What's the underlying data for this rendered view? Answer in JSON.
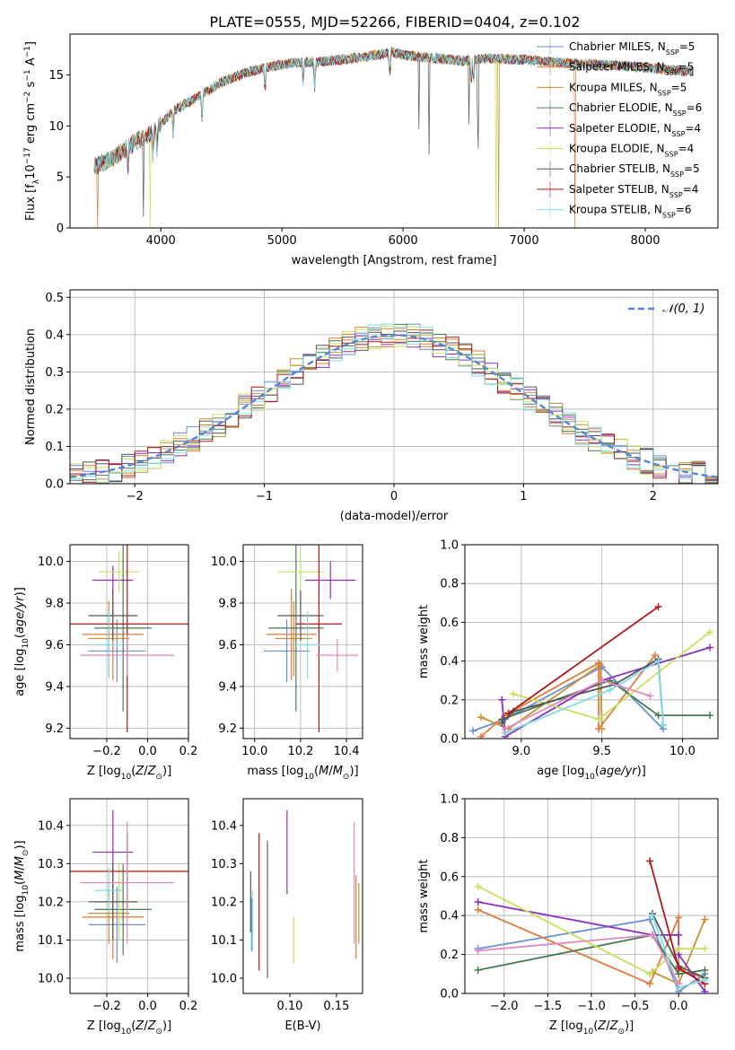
{
  "figure_title": "PLATE=0555, MJD=52266, FIBERID=0404, z=0.102",
  "colors": {
    "Chabrier MILES": "#6a8fd6",
    "Salpeter MILES": "#e07b3a",
    "Kroupa MILES": "#c89030",
    "Chabrier ELODIE": "#4a7a52",
    "Salpeter ELODIE": "#8a2fc0",
    "Kroupa ELODIE": "#c8e060",
    "Chabrier STELIB": "#555555",
    "Salpeter STELIB": "#b01818",
    "Kroupa STELIB": "#7fdde0"
  },
  "chart_data": [
    {
      "id": "spectrum",
      "type": "line",
      "xlabel": "wavelength [Angstrom, rest frame]",
      "ylabel": "Flux [f_λ 10^-17 erg cm^-2 s^-1 A^-1]",
      "xlim": [
        3250,
        8600
      ],
      "ylim": [
        0,
        19
      ],
      "xticks": [
        4000,
        5000,
        6000,
        7000,
        8000
      ],
      "yticks": [
        0,
        5,
        10,
        15
      ],
      "grid": false,
      "legend_position": "right",
      "legend": [
        {
          "label": "Chabrier MILES, N",
          "sub": "SSP",
          "tail": "=5",
          "key": "Chabrier MILES"
        },
        {
          "label": "Salpeter MILES, N",
          "sub": "SSP",
          "tail": "=5",
          "key": "Salpeter MILES"
        },
        {
          "label": "Kroupa MILES, N",
          "sub": "SSP",
          "tail": "=5",
          "key": "Kroupa MILES"
        },
        {
          "label": "Chabrier ELODIE, N",
          "sub": "SSP",
          "tail": "=6",
          "key": "Chabrier ELODIE"
        },
        {
          "label": "Salpeter ELODIE, N",
          "sub": "SSP",
          "tail": "=4",
          "key": "Salpeter ELODIE"
        },
        {
          "label": "Kroupa ELODIE, N",
          "sub": "SSP",
          "tail": "=4",
          "key": "Kroupa ELODIE"
        },
        {
          "label": "Chabrier STELIB, N",
          "sub": "SSP",
          "tail": "=5",
          "key": "Chabrier STELIB"
        },
        {
          "label": "Salpeter STELIB, N",
          "sub": "SSP",
          "tail": "=4",
          "key": "Salpeter STELIB"
        },
        {
          "label": "Kroupa STELIB, N",
          "sub": "SSP",
          "tail": "=6",
          "key": "Kroupa STELIB"
        }
      ],
      "continuum": [
        [
          3450,
          6.0
        ],
        [
          3600,
          6.8
        ],
        [
          3800,
          8.5
        ],
        [
          3950,
          9.5
        ],
        [
          4100,
          11.5
        ],
        [
          4300,
          12.8
        ],
        [
          4500,
          14.3
        ],
        [
          4700,
          15.2
        ],
        [
          4900,
          15.8
        ],
        [
          5100,
          16.2
        ],
        [
          5300,
          16.3
        ],
        [
          5500,
          16.5
        ],
        [
          5700,
          16.8
        ],
        [
          5900,
          17.2
        ],
        [
          6100,
          16.8
        ],
        [
          6300,
          16.6
        ],
        [
          6500,
          16.4
        ],
        [
          6700,
          16.6
        ],
        [
          7000,
          16.5
        ],
        [
          7400,
          16.1
        ],
        [
          7800,
          15.9
        ],
        [
          8200,
          15.5
        ],
        [
          8400,
          15.3
        ]
      ],
      "dropouts": [
        {
          "key": "Salpeter MILES",
          "x": 3480
        },
        {
          "key": "Kroupa ELODIE",
          "x": 3910
        },
        {
          "key": "Kroupa ELODIE",
          "x": 6770
        },
        {
          "key": "Kroupa MILES",
          "x": 6790
        },
        {
          "key": "Salpeter MILES",
          "x": 7420
        }
      ]
    },
    {
      "id": "residuals",
      "type": "histogram",
      "xlabel": "(data-model)/error",
      "ylabel": "Normed distribution",
      "xlim": [
        -2.5,
        2.5
      ],
      "ylim": [
        0,
        0.52
      ],
      "xticks": [
        -2,
        -1,
        0,
        1,
        2
      ],
      "yticks": [
        0.0,
        0.1,
        0.2,
        0.3,
        0.4,
        0.5
      ],
      "grid": true,
      "legend_position": "top-right",
      "legend": [
        {
          "label": "𝒩(0, 1)",
          "style": "dashed"
        }
      ],
      "bin_width": 0.1,
      "normal_curve": {
        "mean": 0,
        "std": 1
      }
    },
    {
      "id": "age_vs_Z",
      "type": "errorbar",
      "xlabel": "Z [log10(Z/Z⊙)]",
      "ylabel": "age  [log10(age/yr)]",
      "xlim": [
        -0.38,
        0.2
      ],
      "ylim": [
        9.15,
        10.08
      ],
      "xticks": [
        -0.2,
        0.0,
        0.2
      ],
      "yticks": [
        9.2,
        9.4,
        9.6,
        9.8,
        10.0
      ],
      "grid": true,
      "points": [
        {
          "key": "Chabrier MILES",
          "x": -0.15,
          "xerr": 0.14,
          "y": 9.57,
          "yerr": 0.15
        },
        {
          "key": "Salpeter MILES",
          "x": -0.17,
          "xerr": 0.15,
          "y": 9.65,
          "yerr": 0.22
        },
        {
          "key": "Kroupa MILES",
          "x": -0.19,
          "xerr": 0.1,
          "y": 9.63,
          "yerr": 0.18
        },
        {
          "key": "Chabrier ELODIE",
          "x": -0.12,
          "xerr": 0.14,
          "y": 9.68,
          "yerr": 0.4
        },
        {
          "key": "Salpeter ELODIE",
          "x": -0.17,
          "xerr": 0.1,
          "y": 9.91,
          "yerr": 0.07
        },
        {
          "key": "Kroupa ELODIE",
          "x": -0.14,
          "xerr": 0.1,
          "y": 9.95,
          "yerr": 0.1
        },
        {
          "key": "Chabrier STELIB",
          "x": -0.17,
          "xerr": 0.12,
          "y": 9.74,
          "yerr": 0.12
        },
        {
          "key": "Salpeter STELIB",
          "x": -0.1,
          "xerr": 0.3,
          "y": 9.7,
          "yerr": 0.52
        },
        {
          "key": "Kroupa STELIB",
          "x": -0.19,
          "xerr": 0.07,
          "y": 9.6,
          "yerr": 0.16
        },
        {
          "key": "_pink",
          "x": -0.1,
          "xerr": 0.23,
          "y": 9.55,
          "yerr": 0.1
        }
      ]
    },
    {
      "id": "age_vs_mass",
      "type": "errorbar",
      "xlabel": "mass [log10(M/M⊙)]",
      "ylabel": "",
      "xlim": [
        9.95,
        10.47
      ],
      "ylim": [
        9.15,
        10.08
      ],
      "xticks": [
        10.0,
        10.2,
        10.4
      ],
      "yticks": [
        9.2,
        9.4,
        9.6,
        9.8,
        10.0
      ],
      "grid": true,
      "points": [
        {
          "key": "Chabrier MILES",
          "x": 10.14,
          "xerr": 0.1,
          "y": 9.57,
          "yerr": 0.15
        },
        {
          "key": "Salpeter MILES",
          "x": 10.16,
          "xerr": 0.11,
          "y": 9.65,
          "yerr": 0.22
        },
        {
          "key": "Kroupa MILES",
          "x": 10.17,
          "xerr": 0.08,
          "y": 9.63,
          "yerr": 0.18
        },
        {
          "key": "Chabrier ELODIE",
          "x": 10.18,
          "xerr": 0.12,
          "y": 9.68,
          "yerr": 0.4
        },
        {
          "key": "Salpeter ELODIE",
          "x": 10.33,
          "xerr": 0.11,
          "y": 9.91,
          "yerr": 0.09
        },
        {
          "key": "Kroupa ELODIE",
          "x": 10.2,
          "xerr": 0.1,
          "y": 9.95,
          "yerr": 0.1
        },
        {
          "key": "Chabrier STELIB",
          "x": 10.2,
          "xerr": 0.1,
          "y": 9.74,
          "yerr": 0.12
        },
        {
          "key": "Salpeter STELIB",
          "x": 10.28,
          "xerr": 0.1,
          "y": 9.7,
          "yerr": 0.52
        },
        {
          "key": "Kroupa STELIB",
          "x": 10.23,
          "xerr": 0.06,
          "y": 9.6,
          "yerr": 0.16
        },
        {
          "key": "_pink",
          "x": 10.36,
          "xerr": 0.09,
          "y": 9.55,
          "yerr": 0.08
        }
      ]
    },
    {
      "id": "weight_vs_age",
      "type": "line",
      "xlabel": "age  [log10(age/yr)]",
      "ylabel": "mass weight",
      "xlim": [
        8.65,
        10.22
      ],
      "ylim": [
        0,
        1.0
      ],
      "xticks": [
        9.0,
        9.5,
        10.0
      ],
      "yticks": [
        0.0,
        0.2,
        0.4,
        0.6,
        0.8,
        1.0
      ],
      "grid": true,
      "series": [
        {
          "key": "Chabrier MILES",
          "points": [
            [
              8.7,
              0.04
            ],
            [
              8.9,
              0.1
            ],
            [
              9.5,
              0.37
            ],
            [
              9.88,
              0.05
            ]
          ]
        },
        {
          "key": "Salpeter MILES",
          "points": [
            [
              8.75,
              0.01
            ],
            [
              8.9,
              0.12
            ],
            [
              9.48,
              0.39
            ],
            [
              9.48,
              0.05
            ],
            [
              9.83,
              0.43
            ]
          ]
        },
        {
          "key": "Kroupa MILES",
          "points": [
            [
              8.75,
              0.11
            ],
            [
              8.92,
              0.05
            ],
            [
              9.49,
              0.38
            ],
            [
              9.5,
              0.05
            ]
          ]
        },
        {
          "key": "Chabrier ELODIE",
          "points": [
            [
              8.88,
              0.1
            ],
            [
              9.55,
              0.3
            ],
            [
              9.85,
              0.12
            ],
            [
              10.17,
              0.12
            ]
          ]
        },
        {
          "key": "Salpeter ELODIE",
          "points": [
            [
              8.88,
              0.2
            ],
            [
              8.9,
              0.01
            ],
            [
              9.5,
              0.3
            ],
            [
              10.17,
              0.47
            ]
          ]
        },
        {
          "key": "Kroupa ELODIE",
          "points": [
            [
              8.95,
              0.23
            ],
            [
              9.48,
              0.1
            ],
            [
              10.17,
              0.55
            ]
          ]
        },
        {
          "key": "Chabrier STELIB",
          "points": [
            [
              8.88,
              0.08
            ],
            [
              8.95,
              0.14
            ],
            [
              9.58,
              0.28
            ],
            [
              9.85,
              0.41
            ],
            [
              9.88,
              0.07
            ]
          ]
        },
        {
          "key": "Salpeter STELIB",
          "points": [
            [
              8.92,
              0.13
            ],
            [
              9.85,
              0.68
            ]
          ]
        },
        {
          "key": "Kroupa STELIB",
          "points": [
            [
              8.9,
              0.03
            ],
            [
              9.55,
              0.25
            ],
            [
              9.85,
              0.4
            ],
            [
              9.88,
              0.07
            ]
          ]
        },
        {
          "key": "_pink",
          "points": [
            [
              8.9,
              0.05
            ],
            [
              9.5,
              0.3
            ],
            [
              9.8,
              0.22
            ]
          ]
        }
      ]
    },
    {
      "id": "mass_vs_Z",
      "type": "errorbar",
      "xlabel": "Z [log10(Z/Z⊙)]",
      "ylabel": "mass [log10(M/M⊙)]",
      "xlim": [
        -0.38,
        0.2
      ],
      "ylim": [
        9.96,
        10.47
      ],
      "xticks": [
        -0.2,
        0.0,
        0.2
      ],
      "yticks": [
        10.0,
        10.1,
        10.2,
        10.3,
        10.4
      ],
      "grid": true,
      "points": [
        {
          "key": "Chabrier MILES",
          "x": -0.15,
          "xerr": 0.14,
          "y": 10.14,
          "yerr": 0.1
        },
        {
          "key": "Salpeter MILES",
          "x": -0.17,
          "xerr": 0.15,
          "y": 10.16,
          "yerr": 0.11
        },
        {
          "key": "Kroupa MILES",
          "x": -0.19,
          "xerr": 0.1,
          "y": 10.17,
          "yerr": 0.08
        },
        {
          "key": "Chabrier ELODIE",
          "x": -0.12,
          "xerr": 0.14,
          "y": 10.18,
          "yerr": 0.12
        },
        {
          "key": "Salpeter ELODIE",
          "x": -0.17,
          "xerr": 0.1,
          "y": 10.33,
          "yerr": 0.11
        },
        {
          "key": "Kroupa ELODIE",
          "x": -0.14,
          "xerr": 0.1,
          "y": 10.2,
          "yerr": 0.1
        },
        {
          "key": "Chabrier STELIB",
          "x": -0.17,
          "xerr": 0.12,
          "y": 10.2,
          "yerr": 0.1
        },
        {
          "key": "Salpeter STELIB",
          "x": -0.1,
          "xerr": 0.3,
          "y": 10.28,
          "yerr": 0.1
        },
        {
          "key": "Kroupa STELIB",
          "x": -0.19,
          "xerr": 0.07,
          "y": 10.23,
          "yerr": 0.06
        },
        {
          "key": "_pink",
          "x": -0.1,
          "xerr": 0.23,
          "y": 10.25,
          "yerr": 0.16
        }
      ]
    },
    {
      "id": "mass_vs_EBV",
      "type": "errorbar",
      "xlabel": "E(B-V)",
      "ylabel": "",
      "xlim": [
        0.05,
        0.178
      ],
      "ylim": [
        9.96,
        10.47
      ],
      "xticks": [
        0.1,
        0.15
      ],
      "yticks": [
        10.0,
        10.1,
        10.2,
        10.3,
        10.4
      ],
      "grid": false,
      "points": [
        {
          "key": "Chabrier MILES",
          "x": 0.059,
          "y": 10.14,
          "yerr": 0.07
        },
        {
          "key": "Salpeter MILES",
          "x": 0.171,
          "y": 10.16,
          "yerr": 0.11
        },
        {
          "key": "Kroupa MILES",
          "x": 0.174,
          "y": 10.17,
          "yerr": 0.08
        },
        {
          "key": "Chabrier ELODIE",
          "x": 0.076,
          "y": 10.18,
          "yerr": 0.18
        },
        {
          "key": "Salpeter ELODIE",
          "x": 0.097,
          "y": 10.33,
          "yerr": 0.11
        },
        {
          "key": "Kroupa ELODIE",
          "x": 0.104,
          "y": 10.1,
          "yerr": 0.06
        },
        {
          "key": "Chabrier STELIB",
          "x": 0.058,
          "y": 10.2,
          "yerr": 0.08
        },
        {
          "key": "Salpeter STELIB",
          "x": 0.067,
          "y": 10.2,
          "yerr": 0.18
        },
        {
          "key": "Kroupa STELIB",
          "x": 0.06,
          "y": 10.15,
          "yerr": 0.08
        },
        {
          "key": "_pink",
          "x": 0.169,
          "y": 10.25,
          "yerr": 0.16
        }
      ]
    },
    {
      "id": "weight_vs_Z",
      "type": "line",
      "xlabel": "Z [log10(Z/Z⊙)]",
      "ylabel": "mass weight",
      "xlim": [
        -2.45,
        0.45
      ],
      "ylim": [
        0,
        1.0
      ],
      "xticks": [
        -2.0,
        -1.5,
        -1.0,
        -0.5,
        0.0
      ],
      "yticks": [
        0.0,
        0.2,
        0.4,
        0.6,
        0.8,
        1.0
      ],
      "grid": true,
      "series": [
        {
          "key": "Chabrier MILES",
          "points": [
            [
              -2.3,
              0.23
            ],
            [
              -0.33,
              0.38
            ],
            [
              0.0,
              0.01
            ],
            [
              0.3,
              0.1
            ]
          ]
        },
        {
          "key": "Salpeter MILES",
          "points": [
            [
              -2.3,
              0.43
            ],
            [
              -0.33,
              0.05
            ],
            [
              0.0,
              0.39
            ],
            [
              0.0,
              0.12
            ],
            [
              0.3,
              0.08
            ]
          ]
        },
        {
          "key": "Kroupa MILES",
          "points": [
            [
              -0.3,
              0.11
            ],
            [
              0.0,
              0.05
            ],
            [
              0.3,
              0.38
            ]
          ]
        },
        {
          "key": "Chabrier ELODIE",
          "points": [
            [
              -2.3,
              0.12
            ],
            [
              -0.3,
              0.3
            ],
            [
              0.0,
              0.1
            ],
            [
              0.3,
              0.12
            ]
          ]
        },
        {
          "key": "Salpeter ELODIE",
          "points": [
            [
              -2.3,
              0.47
            ],
            [
              -0.3,
              0.3
            ],
            [
              0.0,
              0.3
            ],
            [
              0.0,
              0.2
            ],
            [
              0.3,
              0.01
            ]
          ]
        },
        {
          "key": "Kroupa ELODIE",
          "points": [
            [
              -2.3,
              0.55
            ],
            [
              -0.33,
              0.1
            ],
            [
              0.0,
              0.23
            ],
            [
              0.3,
              0.23
            ]
          ]
        },
        {
          "key": "Chabrier STELIB",
          "points": [
            [
              -0.3,
              0.41
            ],
            [
              0.0,
              0.14
            ],
            [
              0.3,
              0.08
            ]
          ]
        },
        {
          "key": "Salpeter STELIB",
          "points": [
            [
              -0.33,
              0.68
            ],
            [
              0.0,
              0.13
            ],
            [
              0.3,
              0.05
            ]
          ]
        },
        {
          "key": "Kroupa STELIB",
          "points": [
            [
              -0.3,
              0.4
            ],
            [
              0.0,
              0.03
            ],
            [
              0.3,
              0.07
            ]
          ]
        },
        {
          "key": "_pink",
          "points": [
            [
              -2.3,
              0.22
            ],
            [
              -0.3,
              0.3
            ],
            [
              0.0,
              0.05
            ]
          ]
        }
      ]
    }
  ]
}
